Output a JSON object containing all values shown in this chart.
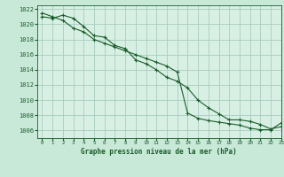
{
  "title": "Graphe pression niveau de la mer (hPa)",
  "background_color": "#c8e8d8",
  "plot_bg_color": "#d8f0e4",
  "grid_color": "#a8ccc0",
  "line_color": "#1a5c2a",
  "marker_color": "#1a5c2a",
  "xlim": [
    -0.5,
    23
  ],
  "ylim": [
    1005.0,
    1022.5
  ],
  "yticks": [
    1006,
    1008,
    1010,
    1012,
    1014,
    1016,
    1018,
    1020,
    1022
  ],
  "xticks": [
    0,
    1,
    2,
    3,
    4,
    5,
    6,
    7,
    8,
    9,
    10,
    11,
    12,
    13,
    14,
    15,
    16,
    17,
    18,
    19,
    20,
    21,
    22,
    23
  ],
  "series1": [
    1021.0,
    1020.8,
    1021.2,
    1020.8,
    1019.7,
    1018.5,
    1018.3,
    1017.2,
    1016.8,
    1015.3,
    1014.8,
    1014.0,
    1013.0,
    1012.5,
    1011.6,
    1010.0,
    1009.0,
    1008.2,
    1007.4,
    1007.4,
    1007.2,
    1006.8,
    1006.2,
    1006.5
  ],
  "series2": [
    1021.5,
    1021.0,
    1020.5,
    1019.5,
    1019.0,
    1018.0,
    1017.5,
    1017.0,
    1016.5,
    1016.0,
    1015.5,
    1015.0,
    1014.5,
    1013.7,
    1008.3,
    1007.6,
    1007.3,
    1007.1,
    1006.9,
    1006.7,
    1006.3,
    1006.1,
    1006.1,
    1007.0
  ]
}
